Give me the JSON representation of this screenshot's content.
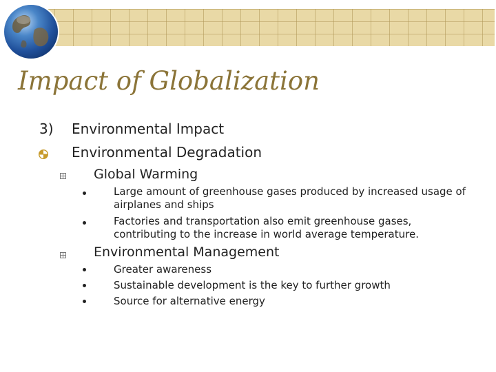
{
  "slide": {
    "title": "Impact of Globalization",
    "number_marker": "3)",
    "heading": "Environmental Impact",
    "subheading": "Environmental Degradation",
    "sections": [
      {
        "label": "Global Warming",
        "bullets": [
          "Large amount of greenhouse gases produced by increased usage of airplanes and ships",
          "Factories and transportation also emit greenhouse gases, contributing to the increase in world average temperature."
        ]
      },
      {
        "label": "Environmental Management",
        "bullets": [
          "Greater awareness",
          "Sustainable development is the key to further growth",
          "Source for alternative energy"
        ]
      }
    ]
  },
  "colors": {
    "title": "#8b7438",
    "banner": "#e9d9a6",
    "bullet_accent": "#c79a2a"
  },
  "icons": {
    "logo": "globe-icon",
    "level1_bullet": "pie-bullet-icon",
    "level2_bullet": "box-bullet-icon",
    "level3_bullet": "dot-bullet-icon"
  }
}
